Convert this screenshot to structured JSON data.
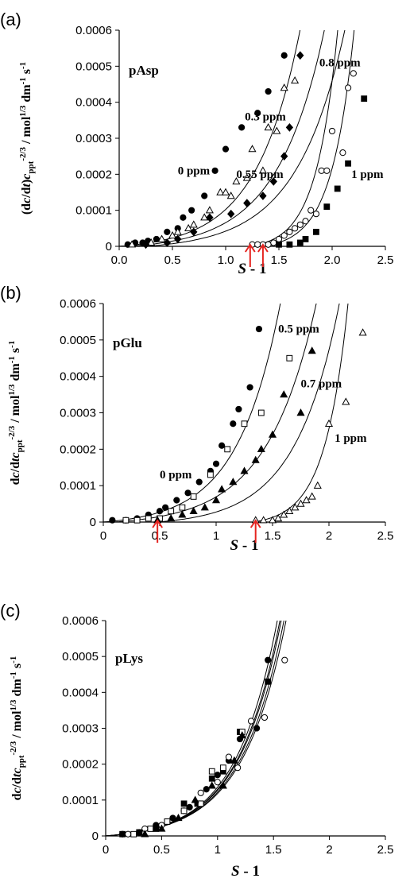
{
  "chart_data": [
    {
      "type": "scatter",
      "panel_label": "(a)",
      "title": "pAsp",
      "xlabel": "S - 1",
      "ylabel": "(dc/dt)cppt-2/3 / mol1/3 dm-1 s-1",
      "xlim": [
        0,
        2.5
      ],
      "ylim": [
        0,
        0.0006
      ],
      "x_ticks": [
        "0.0",
        "0.5",
        "1.0",
        "1.5",
        "2.0",
        "2.5"
      ],
      "y_ticks": [
        "0",
        "0.0001",
        "0.0002",
        "0.0003",
        "0.0004",
        "0.0005",
        "0.0006"
      ],
      "grid": false,
      "series": [
        {
          "name": "0 ppm",
          "marker": "filled-circle",
          "points": [
            [
              0.08,
              5e-06
            ],
            [
              0.15,
              1e-05
            ],
            [
              0.22,
              1e-05
            ],
            [
              0.27,
              1.5e-05
            ],
            [
              0.35,
              2e-05
            ],
            [
              0.45,
              4e-05
            ],
            [
              0.55,
              5e-05
            ],
            [
              0.6,
              8e-05
            ],
            [
              0.68,
              0.0001
            ],
            [
              0.8,
              0.00014
            ],
            [
              0.9,
              0.00021
            ],
            [
              1.0,
              0.00027
            ],
            [
              1.15,
              0.00033
            ],
            [
              1.3,
              0.00037
            ],
            [
              1.4,
              0.00043
            ],
            [
              1.55,
              0.00053
            ]
          ],
          "fit": {
            "x0": 0.0,
            "k": 2.42
          }
        },
        {
          "name": "0.3 ppm",
          "marker": "open-triangle",
          "points": [
            [
              0.12,
              5e-06
            ],
            [
              0.3,
              1e-05
            ],
            [
              0.4,
              2e-05
            ],
            [
              0.5,
              3e-05
            ],
            [
              0.55,
              4e-05
            ],
            [
              0.65,
              5e-05
            ],
            [
              0.7,
              6e-05
            ],
            [
              0.8,
              8e-05
            ],
            [
              0.85,
              0.0001
            ],
            [
              0.95,
              0.00015
            ],
            [
              1.0,
              0.00015
            ],
            [
              1.05,
              0.00014
            ],
            [
              1.1,
              0.00018
            ],
            [
              1.2,
              0.00019
            ],
            [
              1.25,
              0.00027
            ],
            [
              1.35,
              0.00021
            ],
            [
              1.4,
              0.00033
            ],
            [
              1.48,
              0.00032
            ],
            [
              1.55,
              0.00044
            ],
            [
              1.65,
              0.00046
            ]
          ],
          "fit": {
            "x0": 0.1,
            "k": 2.25
          }
        },
        {
          "name": "0.55 ppm",
          "marker": "filled-diamond",
          "points": [
            [
              0.25,
              5e-06
            ],
            [
              0.45,
              1e-05
            ],
            [
              0.55,
              2e-05
            ],
            [
              0.7,
              4e-05
            ],
            [
              0.85,
              8e-05
            ],
            [
              1.05,
              9e-05
            ],
            [
              1.2,
              0.00012
            ],
            [
              1.35,
              0.00014
            ],
            [
              1.45,
              0.00018
            ],
            [
              1.55,
              0.00025
            ],
            [
              1.6,
              0.00033
            ],
            [
              1.7,
              0.00053
            ]
          ],
          "fit": {
            "x0": 0.25,
            "k": 2.2
          }
        },
        {
          "name": "0.8 ppm",
          "marker": "open-circle",
          "points": [
            [
              1.25,
              5e-06
            ],
            [
              1.3,
              5e-06
            ],
            [
              1.35,
              5e-06
            ],
            [
              1.4,
              5e-06
            ],
            [
              1.45,
              1e-05
            ],
            [
              1.5,
              2e-05
            ],
            [
              1.55,
              3e-05
            ],
            [
              1.6,
              4e-05
            ],
            [
              1.65,
              5e-05
            ],
            [
              1.7,
              6e-05
            ],
            [
              1.75,
              7e-05
            ],
            [
              1.8,
              0.0001
            ],
            [
              1.85,
              9e-05
            ],
            [
              1.9,
              0.00021
            ],
            [
              1.95,
              0.00021
            ],
            [
              2.0,
              0.00032
            ],
            [
              2.1,
              0.00026
            ],
            [
              2.15,
              0.00044
            ],
            [
              2.2,
              0.00048
            ]
          ],
          "fit": {
            "x0": 1.23,
            "k": 5.0
          }
        },
        {
          "name": "1 ppm",
          "marker": "filled-square",
          "points": [
            [
              1.5,
              5e-06
            ],
            [
              1.6,
              5e-06
            ],
            [
              1.7,
              1e-05
            ],
            [
              1.75,
              2e-05
            ],
            [
              1.85,
              4e-05
            ],
            [
              1.95,
              0.00011
            ],
            [
              2.05,
              0.00016
            ],
            [
              2.15,
              0.00023
            ],
            [
              2.3,
              0.00041
            ]
          ],
          "fit": {
            "x0": 1.35,
            "k": 4.8
          }
        }
      ],
      "arrows_x": [
        1.23,
        1.35
      ],
      "annotations": [
        {
          "text": "0 ppm",
          "x": 0.55,
          "y": 0.0002
        },
        {
          "text": "0.3 ppm",
          "x": 1.18,
          "y": 0.00035
        },
        {
          "text": "0.55 ppm",
          "x": 1.1,
          "y": 0.00019
        },
        {
          "text": "0.8 ppm",
          "x": 1.88,
          "y": 0.0005
        },
        {
          "text": "1 ppm",
          "x": 2.18,
          "y": 0.00019
        }
      ]
    },
    {
      "type": "scatter",
      "panel_label": "(b)",
      "title": "pGlu",
      "xlabel": "S - 1",
      "ylabel": "dc/dtcppt-2/3 / mol1/3 dm-1 s-1",
      "xlim": [
        0,
        2.5
      ],
      "ylim": [
        0,
        0.0006
      ],
      "x_ticks": [
        "0",
        "0.5",
        "1",
        "1.5",
        "2",
        "2.5"
      ],
      "y_ticks": [
        "0",
        "0.0001",
        "0.0002",
        "0.0003",
        "0.0004",
        "0.0005",
        "0.0006"
      ],
      "grid": false,
      "series": [
        {
          "name": "0 ppm",
          "marker": "filled-circle",
          "points": [
            [
              0.08,
              5e-06
            ],
            [
              0.2,
              5e-06
            ],
            [
              0.3,
              1e-05
            ],
            [
              0.4,
              2e-05
            ],
            [
              0.5,
              3e-05
            ],
            [
              0.55,
              4e-05
            ],
            [
              0.65,
              6e-05
            ],
            [
              0.75,
              8e-05
            ],
            [
              0.85,
              0.00011
            ],
            [
              0.95,
              0.00014
            ],
            [
              1.0,
              0.00016
            ],
            [
              1.05,
              0.00021
            ],
            [
              1.15,
              0.00027
            ],
            [
              1.2,
              0.00031
            ],
            [
              1.3,
              0.00037
            ],
            [
              1.38,
              0.00053
            ]
          ],
          "fit": {
            "x0": 0.0,
            "k": 2.62
          }
        },
        {
          "name": "0.5 ppm",
          "marker": "open-square",
          "points": [
            [
              0.2,
              5e-06
            ],
            [
              0.3,
              5e-06
            ],
            [
              0.4,
              1e-05
            ],
            [
              0.5,
              1e-05
            ],
            [
              0.6,
              3e-05
            ],
            [
              0.7,
              4e-05
            ],
            [
              0.8,
              7e-05
            ],
            [
              0.95,
              0.00013
            ],
            [
              1.1,
              0.0002
            ],
            [
              1.25,
              0.00027
            ],
            [
              1.4,
              0.0003
            ],
            [
              1.65,
              0.00045
            ]
          ],
          "fit": {
            "x0": 0.1,
            "k": 2.3
          }
        },
        {
          "name": "0.7 ppm",
          "marker": "filled-triangle",
          "points": [
            [
              0.48,
              5e-06
            ],
            [
              0.6,
              1e-05
            ],
            [
              0.7,
              2e-05
            ],
            [
              0.8,
              3e-05
            ],
            [
              0.9,
              4e-05
            ],
            [
              1.0,
              6e-05
            ],
            [
              1.05,
              9e-05
            ],
            [
              1.15,
              0.00011
            ],
            [
              1.25,
              0.00014
            ],
            [
              1.35,
              0.00017
            ],
            [
              1.4,
              0.0002
            ],
            [
              1.5,
              0.00024
            ],
            [
              1.6,
              0.00035
            ],
            [
              1.75,
              0.0003
            ],
            [
              1.85,
              0.00047
            ]
          ],
          "fit": {
            "x0": 0.48,
            "k": 2.55
          }
        },
        {
          "name": "1 ppm",
          "marker": "open-triangle",
          "points": [
            [
              1.35,
              5e-06
            ],
            [
              1.42,
              5e-06
            ],
            [
              1.5,
              5e-06
            ],
            [
              1.55,
              1e-05
            ],
            [
              1.6,
              2e-05
            ],
            [
              1.65,
              3e-05
            ],
            [
              1.7,
              4e-05
            ],
            [
              1.75,
              5e-05
            ],
            [
              1.8,
              6e-05
            ],
            [
              1.85,
              7e-05
            ],
            [
              1.9,
              0.0001
            ],
            [
              2.0,
              0.00027
            ],
            [
              2.15,
              0.00033
            ],
            [
              2.3,
              0.00052
            ]
          ],
          "fit": {
            "x0": 1.33,
            "k": 4.9
          }
        }
      ],
      "arrows_x": [
        0.48,
        1.35
      ],
      "annotations": [
        {
          "text": "0 ppm",
          "x": 0.5,
          "y": 0.00012
        },
        {
          "text": "0.5 ppm",
          "x": 1.55,
          "y": 0.00052
        },
        {
          "text": "0.7 ppm",
          "x": 1.75,
          "y": 0.00037
        },
        {
          "text": "1 ppm",
          "x": 2.05,
          "y": 0.00022
        }
      ]
    },
    {
      "type": "scatter",
      "panel_label": "(c)",
      "title": "pLys",
      "xlabel": "S - 1",
      "ylabel": "dc/dtcppt-2/3 / mol1/3 dm-1 s-1",
      "xlim": [
        0,
        2.5
      ],
      "ylim": [
        0,
        0.0006
      ],
      "x_ticks": [
        "0",
        "0.5",
        "1",
        "1.5",
        "2",
        "2.5"
      ],
      "y_ticks": [
        "0",
        "0.0001",
        "0.0002",
        "0.0003",
        "0.0004",
        "0.0005",
        "0.0006"
      ],
      "grid": false,
      "series": [
        {
          "marker": "filled-circle",
          "points": [
            [
              0.15,
              5e-06
            ],
            [
              0.3,
              1e-05
            ],
            [
              0.45,
              3e-05
            ],
            [
              0.6,
              5e-05
            ],
            [
              0.75,
              8e-05
            ],
            [
              0.9,
              0.00013
            ],
            [
              1.0,
              0.00017
            ],
            [
              1.1,
              0.00021
            ],
            [
              1.2,
              0.00027
            ],
            [
              1.35,
              0.0003
            ],
            [
              1.45,
              0.00049
            ]
          ],
          "fit": {
            "x0": 0.0,
            "k": 2.68
          }
        },
        {
          "marker": "open-circle",
          "points": [
            [
              0.2,
              5e-06
            ],
            [
              0.35,
              2e-05
            ],
            [
              0.5,
              3e-05
            ],
            [
              0.7,
              7e-05
            ],
            [
              0.85,
              0.00012
            ],
            [
              1.0,
              0.00015
            ],
            [
              1.1,
              0.00022
            ],
            [
              1.18,
              0.00019
            ],
            [
              1.3,
              0.00032
            ],
            [
              1.42,
              0.00033
            ],
            [
              1.6,
              0.00049
            ]
          ],
          "fit": {
            "x0": 0.0,
            "k": 2.62
          }
        },
        {
          "marker": "filled-square",
          "points": [
            [
              0.15,
              5e-06
            ],
            [
              0.3,
              1e-05
            ],
            [
              0.45,
              2e-05
            ],
            [
              0.55,
              4e-05
            ],
            [
              0.7,
              9e-05
            ],
            [
              0.82,
              9e-05
            ],
            [
              0.95,
              0.00016
            ],
            [
              1.05,
              0.00018
            ],
            [
              1.2,
              0.00029
            ],
            [
              1.45,
              0.00043
            ]
          ],
          "fit": {
            "x0": 0.0,
            "k": 2.64
          }
        },
        {
          "marker": "open-square",
          "points": [
            [
              0.25,
              5e-06
            ],
            [
              0.4,
              2e-05
            ],
            [
              0.55,
              4e-05
            ],
            [
              0.7,
              7e-05
            ],
            [
              0.85,
              9e-05
            ],
            [
              0.95,
              0.00018
            ],
            [
              1.05,
              0.00019
            ],
            [
              1.22,
              0.00029
            ]
          ],
          "fit": {
            "x0": 0.0,
            "k": 2.58
          }
        },
        {
          "marker": "filled-triangle",
          "points": [
            [
              0.35,
              5e-06
            ],
            [
              0.5,
              2e-05
            ],
            [
              0.65,
              5e-05
            ],
            [
              0.8,
              0.0001
            ],
            [
              0.95,
              0.00014
            ],
            [
              1.05,
              0.00014
            ],
            [
              1.15,
              0.00021
            ],
            [
              1.22,
              0.00028
            ]
          ],
          "fit": {
            "x0": 0.0,
            "k": 2.55
          }
        }
      ],
      "arrows_x": [],
      "annotations": []
    }
  ]
}
